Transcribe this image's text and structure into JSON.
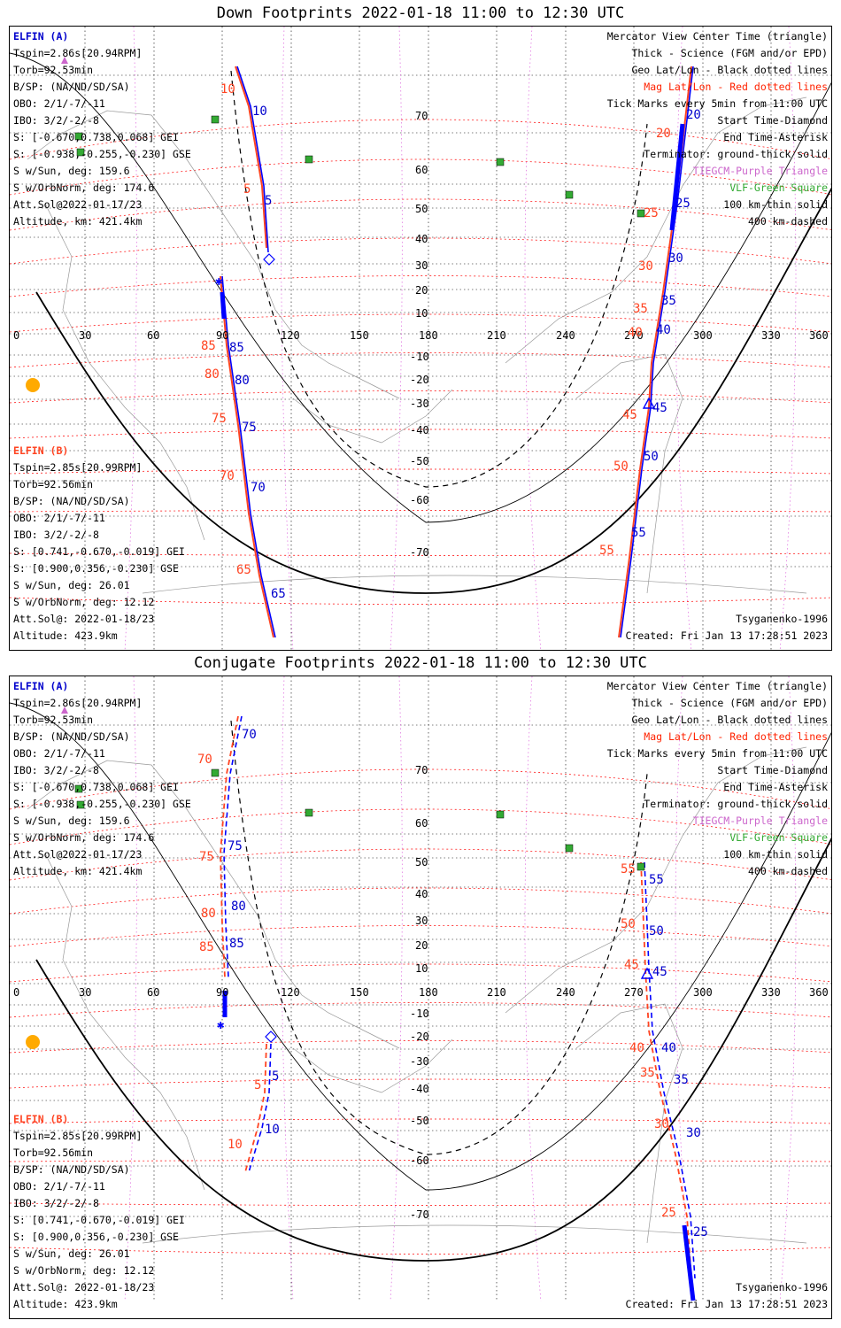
{
  "panels": [
    {
      "title": "Down Footprints 2022-01-18 11:00 to 12:30 UTC",
      "elfin_a": {
        "label": "ELFIN (A)",
        "lines": [
          "Tspin=2.86s[20.94RPM]",
          "Torb=92.53min",
          "B/SP: (NA/ND/SD/SA)",
          "OBO: 2/1/-7/-11",
          "IBO: 3/2/-2/-8",
          "S: [-0.670,0.738,0.068] GEI",
          "S: [-0.938,-0.255,-0.230] GSE",
          "S w/Sun, deg: 159.6",
          "S w/OrbNorm, deg: 174.6",
          "Att.Sol@2022-01-17/23",
          "Altitude, km: 421.4km"
        ]
      },
      "elfin_b": {
        "label": "ELFIN (B)",
        "lines": [
          "Tspin=2.85s[20.99RPM]",
          "Torb=92.56min",
          "B/SP: (NA/ND/SD/SA)",
          "OBO: 2/1/-7/-11",
          "IBO: 3/2/-2/-8",
          "S: [0.741,-0.670,-0.019] GEI",
          "S: [0.900,0.356,-0.230] GSE",
          "S w/Sun, deg: 26.01",
          "S w/OrbNorm, deg: 12.12",
          "Att.Sol@: 2022-01-18/23",
          "Altitude: 423.9km"
        ]
      },
      "legend": [
        "Mercator View Center Time (triangle)",
        "Thick - Science (FGM and/or EPD)",
        "Geo Lat/Lon - Black dotted lines",
        "Mag Lat/Lon - Red dotted lines",
        "Tick Marks every 5min from 11:00 UTC",
        "Start Time-Diamond",
        "End Time-Asterisk",
        "Terminator: ground-thick solid",
        "TIEGCM-Purple Triangle",
        "VLF-Green Square",
        "100 km-thin solid",
        "400 km-dashed"
      ],
      "model": "Tsyganenko-1996",
      "created": "Created: Fri Jan 13 17:28:51 2023",
      "lon_ticks": [
        "0",
        "30",
        "60",
        "90",
        "120",
        "150",
        "180",
        "210",
        "240",
        "270",
        "300",
        "330",
        "360"
      ],
      "lat_ticks": [
        "70",
        "60",
        "50",
        "40",
        "30",
        "20",
        "10",
        "-10",
        "-20",
        "-30",
        "-40",
        "-50",
        "-60",
        "-70"
      ],
      "track_a_labels": [
        "10",
        "5",
        "85",
        "80",
        "75",
        "70",
        "65",
        "20",
        "25",
        "30",
        "35",
        "40",
        "45",
        "50",
        "55"
      ],
      "track_b_labels": [
        "10",
        "5",
        "85",
        "80",
        "75",
        "70",
        "65",
        "20",
        "25",
        "30",
        "35",
        "40",
        "45",
        "50",
        "55"
      ]
    },
    {
      "title": "Conjugate Footprints 2022-01-18 11:00 to 12:30 UTC",
      "elfin_a": {
        "label": "ELFIN (A)",
        "lines": [
          "Tspin=2.86s[20.94RPM]",
          "Torb=92.53min",
          "B/SP: (NA/ND/SD/SA)",
          "OBO: 2/1/-7/-11",
          "IBO: 3/2/-2/-8",
          "S: [-0.670,0.738,0.068] GEI",
          "S: [-0.938,-0.255,-0.230] GSE",
          "S w/Sun, deg: 159.6",
          "S w/OrbNorm, deg: 174.6",
          "Att.Sol@2022-01-17/23",
          "Altitude, km: 421.4km"
        ]
      },
      "elfin_b": {
        "label": "ELFIN (B)",
        "lines": [
          "Tspin=2.85s[20.99RPM]",
          "Torb=92.56min",
          "B/SP: (NA/ND/SD/SA)",
          "OBO: 2/1/-7/-11",
          "IBO: 3/2/-2/-8",
          "S: [0.741,-0.670,-0.019] GEI",
          "S: [0.900,0.356,-0.230] GSE",
          "S w/Sun, deg: 26.01",
          "S w/OrbNorm, deg: 12.12",
          "Att.Sol@: 2022-01-18/23",
          "Altitude: 423.9km"
        ]
      },
      "legend": [
        "Mercator View Center Time (triangle)",
        "Thick - Science (FGM and/or EPD)",
        "Geo Lat/Lon - Black dotted lines",
        "Mag Lat/Lon - Red dotted lines",
        "Tick Marks every 5min from 11:00 UTC",
        "Start Time-Diamond",
        "End Time-Asterisk",
        "Terminator: ground-thick solid",
        "TIEGCM-Purple Triangle",
        "VLF-Green Square",
        "100 km-thin solid",
        "400 km-dashed"
      ],
      "model": "Tsyganenko-1996",
      "created": "Created: Fri Jan 13 17:28:51 2023",
      "lon_ticks": [
        "0",
        "30",
        "60",
        "90",
        "120",
        "150",
        "180",
        "210",
        "240",
        "270",
        "300",
        "330",
        "360"
      ],
      "lat_ticks": [
        "70",
        "60",
        "50",
        "40",
        "30",
        "20",
        "10",
        "-10",
        "-20",
        "-30",
        "-40",
        "-50",
        "-60",
        "-70"
      ],
      "track_a_labels": [
        "70",
        "75",
        "80",
        "85",
        "5",
        "10",
        "55",
        "50",
        "45",
        "40",
        "35",
        "30",
        "25"
      ],
      "track_b_labels": [
        "70",
        "75",
        "80",
        "85",
        "5",
        "10",
        "55",
        "50",
        "45",
        "40",
        "35",
        "30",
        "25"
      ]
    }
  ],
  "colors": {
    "elfin_a": "#0000ff",
    "elfin_b": "#ff4422",
    "mag_grid": "#ff0000",
    "geo_grid": "#000000",
    "tiegcm": "#cc66cc",
    "vlf": "#33aa33",
    "sun": "#ffaa00"
  }
}
